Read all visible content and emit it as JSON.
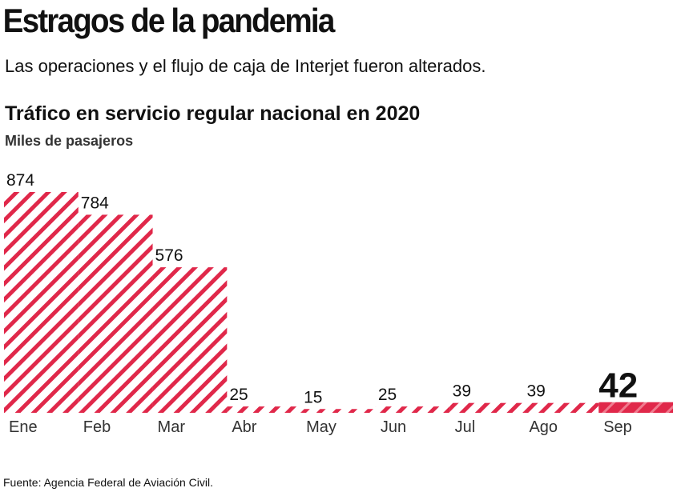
{
  "chart_data": {
    "type": "bar",
    "title": "Estragos de la pandemia",
    "subtitle": "Las operaciones y el flujo de caja de Interjet fueron alterados.",
    "chart_title": "Tráfico en servicio regular nacional en 2020",
    "unit_label": "Miles de pasajeros",
    "source": "Fuente: Agencia Federal de Aviación Civil.",
    "categories": [
      "Ene",
      "Feb",
      "Mar",
      "Abr",
      "May",
      "Jun",
      "Jul",
      "Ago",
      "Sep"
    ],
    "values": [
      874,
      784,
      576,
      25,
      15,
      25,
      39,
      39,
      42
    ],
    "color": "#e0284a",
    "highlight_index": 8
  }
}
